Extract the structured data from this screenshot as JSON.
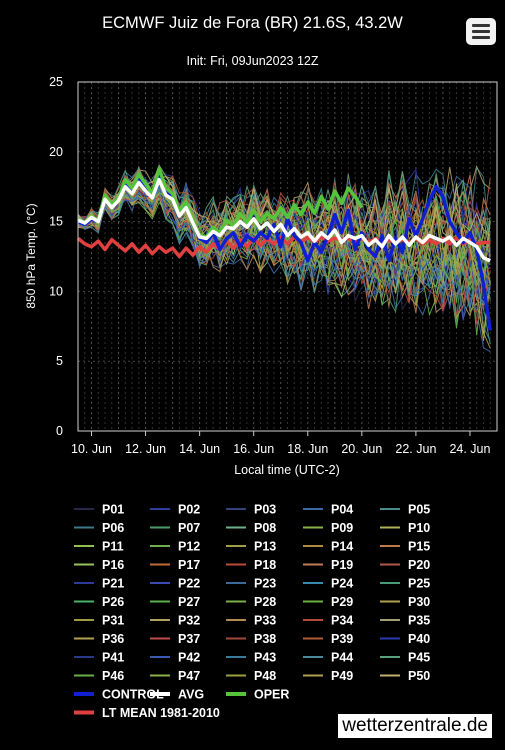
{
  "header": {
    "title": "ECMWF Juiz de Fora (BR) 21.6S, 43.2W",
    "subtitle": "Init: Fri, 09Jun2023 12Z"
  },
  "credit": "wetterzentrale.de",
  "chart_data": {
    "type": "line",
    "title": "ECMWF Juiz de Fora (BR) 21.6S, 43.2W",
    "subtitle": "Init: Fri, 09Jun2023 12Z",
    "xlabel": "Local time (UTC-2)",
    "ylabel": "850 hPa Temp. (°C)",
    "ylim": [
      0,
      25
    ],
    "yticks": [
      0,
      5,
      10,
      15,
      20,
      25
    ],
    "x_tick_labels": [
      "10. Jun",
      "12. Jun",
      "14. Jun",
      "16. Jun",
      "18. Jun",
      "20. Jun",
      "22. Jun",
      "24. Jun"
    ],
    "x_tick_days": [
      10,
      12,
      14,
      16,
      18,
      20,
      22,
      24
    ],
    "xlim_days": [
      9.5,
      25.0
    ],
    "grid": true,
    "legend_position": "bottom",
    "x_days": [
      9.5,
      9.75,
      10,
      10.25,
      10.5,
      10.75,
      11,
      11.25,
      11.5,
      11.75,
      12,
      12.25,
      12.5,
      12.75,
      13,
      13.25,
      13.5,
      13.75,
      14,
      14.25,
      14.5,
      14.75,
      15,
      15.25,
      15.5,
      15.75,
      16,
      16.25,
      16.5,
      16.75,
      17,
      17.25,
      17.5,
      17.75,
      18,
      18.25,
      18.5,
      18.75,
      19,
      19.25,
      19.5,
      19.75,
      20,
      20.25,
      20.5,
      20.75,
      21,
      21.25,
      21.5,
      21.75,
      22,
      22.25,
      22.5,
      22.75,
      23,
      23.25,
      23.5,
      23.75,
      24,
      24.25,
      24.5,
      24.75
    ],
    "highlighted_series": [
      {
        "name": "CONTROL",
        "color": "#1020d0",
        "width": 3.5,
        "values": [
          15.0,
          14.8,
          15.2,
          15.0,
          16.8,
          16.0,
          16.5,
          17.8,
          17.2,
          18.2,
          17.5,
          16.8,
          18.5,
          17.2,
          16.8,
          15.5,
          16.2,
          15.0,
          13.8,
          13.5,
          14.2,
          13.0,
          13.8,
          14.2,
          13.2,
          14.0,
          13.6,
          14.2,
          13.8,
          14.8,
          13.2,
          15.2,
          14.0,
          13.5,
          12.2,
          13.5,
          12.8,
          14.0,
          15.5,
          14.2,
          15.8,
          13.0,
          14.2,
          13.0,
          12.5,
          14.0,
          12.2,
          13.8,
          12.8,
          15.2,
          14.0,
          15.2,
          16.5,
          17.5,
          16.8,
          15.0,
          14.2,
          13.5,
          14.2,
          13.0,
          10.5,
          7.2
        ]
      },
      {
        "name": "AVG",
        "color": "#ffffff",
        "width": 3.5,
        "values": [
          15.1,
          14.9,
          15.3,
          15.0,
          16.6,
          16.0,
          16.5,
          17.5,
          17.0,
          17.8,
          17.2,
          16.7,
          18.0,
          16.9,
          16.6,
          15.4,
          16.0,
          14.9,
          13.9,
          13.8,
          14.3,
          14.0,
          14.6,
          14.5,
          15.0,
          14.6,
          15.2,
          14.5,
          14.9,
          14.3,
          14.8,
          14.0,
          14.5,
          13.9,
          14.2,
          13.6,
          14.2,
          13.8,
          14.4,
          13.5,
          14.0,
          13.8,
          14.0,
          13.3,
          13.7,
          13.2,
          14.0,
          13.4,
          13.9,
          13.3,
          13.9,
          13.5,
          14.0,
          13.8,
          13.6,
          13.9,
          13.3,
          13.8,
          13.5,
          13.2,
          12.4,
          12.2
        ]
      },
      {
        "name": "OPER",
        "color": "#55c43b",
        "width": 3.5,
        "values": [
          15.2,
          14.9,
          15.4,
          15.1,
          16.9,
          16.2,
          16.7,
          18.0,
          17.4,
          18.4,
          17.7,
          17.0,
          18.8,
          17.4,
          17.0,
          15.7,
          16.4,
          15.1,
          14.0,
          13.9,
          14.6,
          14.2,
          15.1,
          14.7,
          15.6,
          14.9,
          15.8,
          15.0,
          15.6,
          15.2,
          16.0,
          15.3,
          16.2,
          15.5,
          16.4,
          15.6,
          16.8,
          15.9,
          17.2,
          16.3,
          17.4,
          16.8,
          16.0
        ]
      },
      {
        "name": "LT MEAN 1981-2010",
        "color": "#e04040",
        "width": 3.5,
        "values": [
          13.8,
          13.4,
          13.2,
          13.6,
          13.0,
          13.7,
          13.3,
          12.9,
          13.4,
          12.8,
          13.3,
          12.7,
          13.2,
          12.8,
          13.1,
          12.5,
          13.1,
          12.6,
          13.2,
          12.8,
          13.4,
          13.0,
          13.6,
          13.1,
          13.7,
          13.2,
          13.8,
          13.3,
          13.8,
          13.4,
          13.9,
          13.4,
          13.9,
          13.5,
          13.9,
          13.5,
          13.9,
          13.6,
          13.8,
          13.7,
          13.8,
          13.5,
          13.8,
          13.5,
          13.8,
          13.5,
          13.7,
          13.5,
          13.7,
          13.5,
          13.8,
          13.4,
          13.7,
          13.4,
          13.8,
          13.4,
          13.8,
          13.4,
          13.7,
          13.4,
          13.5,
          13.5
        ]
      }
    ],
    "perturbed_members": [
      {
        "name": "P01",
        "color": "#28284a"
      },
      {
        "name": "P02",
        "color": "#2a3f9a"
      },
      {
        "name": "P03",
        "color": "#33427a"
      },
      {
        "name": "P04",
        "color": "#3c6aa6"
      },
      {
        "name": "P05",
        "color": "#4a8a8a"
      },
      {
        "name": "P06",
        "color": "#3a7d8a"
      },
      {
        "name": "P07",
        "color": "#4a9e6a"
      },
      {
        "name": "P08",
        "color": "#6ab28a"
      },
      {
        "name": "P09",
        "color": "#8ab04a"
      },
      {
        "name": "P10",
        "color": "#b0b05a"
      },
      {
        "name": "P11",
        "color": "#8ec24a"
      },
      {
        "name": "P12",
        "color": "#6cb04c"
      },
      {
        "name": "P13",
        "color": "#a0a040"
      },
      {
        "name": "P14",
        "color": "#b08a3a"
      },
      {
        "name": "P15",
        "color": "#c07a4a"
      },
      {
        "name": "P16",
        "color": "#9ac060"
      },
      {
        "name": "P17",
        "color": "#c06a3a"
      },
      {
        "name": "P18",
        "color": "#c04a3a"
      },
      {
        "name": "P19",
        "color": "#c07a5a"
      },
      {
        "name": "P20",
        "color": "#b05a4a"
      },
      {
        "name": "P21",
        "color": "#2e3a9a"
      },
      {
        "name": "P22",
        "color": "#3a4ab0"
      },
      {
        "name": "P23",
        "color": "#3a6a9a"
      },
      {
        "name": "P24",
        "color": "#3a8ab0"
      },
      {
        "name": "P25",
        "color": "#4a9a7a"
      },
      {
        "name": "P26",
        "color": "#4ab06a"
      },
      {
        "name": "P27",
        "color": "#5ab04a"
      },
      {
        "name": "P28",
        "color": "#7ab04a"
      },
      {
        "name": "P29",
        "color": "#6ab040"
      },
      {
        "name": "P30",
        "color": "#b0a050"
      },
      {
        "name": "P31",
        "color": "#a09a40"
      },
      {
        "name": "P32",
        "color": "#b0a060"
      },
      {
        "name": "P33",
        "color": "#b08a50"
      },
      {
        "name": "P34",
        "color": "#b04a3a"
      },
      {
        "name": "P35",
        "color": "#a0a070"
      },
      {
        "name": "P36",
        "color": "#b0a050"
      },
      {
        "name": "P37",
        "color": "#c04a4a"
      },
      {
        "name": "P38",
        "color": "#a04a3a"
      },
      {
        "name": "P39",
        "color": "#b05a3a"
      },
      {
        "name": "P40",
        "color": "#2a3ab0"
      },
      {
        "name": "P41",
        "color": "#2a3a8a"
      },
      {
        "name": "P42",
        "color": "#3a5ab0"
      },
      {
        "name": "P43",
        "color": "#3a7a9a"
      },
      {
        "name": "P44",
        "color": "#4a8a9a"
      },
      {
        "name": "P45",
        "color": "#5aa07a"
      },
      {
        "name": "P46",
        "color": "#6ab04a"
      },
      {
        "name": "P47",
        "color": "#8ab04a"
      },
      {
        "name": "P48",
        "color": "#9aa03a"
      },
      {
        "name": "P49",
        "color": "#b0a050"
      },
      {
        "name": "P50",
        "color": "#c0b070"
      }
    ]
  }
}
